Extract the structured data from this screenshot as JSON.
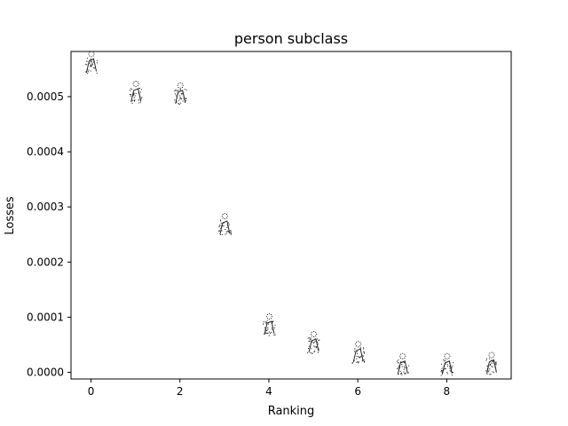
{
  "chart_data": {
    "type": "scatter",
    "title": "person subclass",
    "xlabel": "Ranking",
    "ylabel": "Losses",
    "xlim": [
      -0.45,
      9.45
    ],
    "ylim": [
      -1.2e-05,
      0.000582
    ],
    "xticks": [
      0,
      2,
      4,
      6,
      8
    ],
    "xtick_labels": [
      "0",
      "2",
      "4",
      "6",
      "8"
    ],
    "yticks": [
      0.0,
      0.0001,
      0.0002,
      0.0003,
      0.0004,
      0.0005
    ],
    "ytick_labels": [
      "0.0000",
      "0.0001",
      "0.0002",
      "0.0003",
      "0.0004",
      "0.0005"
    ],
    "grid": false,
    "points": [
      {
        "x": 0,
        "y": 0.000562
      },
      {
        "x": 1,
        "y": 0.000508
      },
      {
        "x": 2,
        "y": 0.000505
      },
      {
        "x": 3,
        "y": 0.000268
      },
      {
        "x": 4,
        "y": 8.6e-05
      },
      {
        "x": 5,
        "y": 5.4e-05
      },
      {
        "x": 6,
        "y": 3.6e-05
      },
      {
        "x": 7,
        "y": 1.4e-05
      },
      {
        "x": 8,
        "y": 1.4e-05
      },
      {
        "x": 9,
        "y": 1.6e-05
      }
    ],
    "marker": "person-thumbnail-image",
    "marker_color": "#111111"
  }
}
